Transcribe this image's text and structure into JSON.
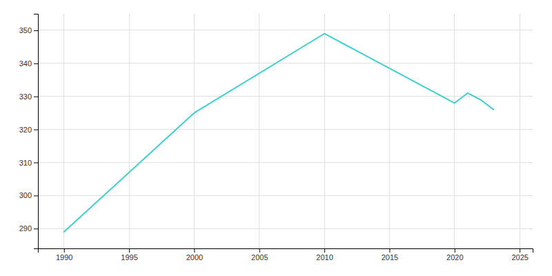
{
  "chart_data": {
    "type": "line",
    "x": [
      1990,
      2000,
      2010,
      2020,
      2021,
      2022,
      2023
    ],
    "values": [
      289,
      325,
      349,
      328,
      331,
      329,
      326
    ],
    "color": "#3ECFCF",
    "xlim": [
      1988,
      2026
    ],
    "ylim": [
      284,
      355
    ],
    "xticks": [
      1990,
      1995,
      2000,
      2005,
      2010,
      2015,
      2020,
      2025
    ],
    "yticks": [
      290,
      300,
      310,
      320,
      330,
      340,
      350
    ],
    "grid": true
  }
}
